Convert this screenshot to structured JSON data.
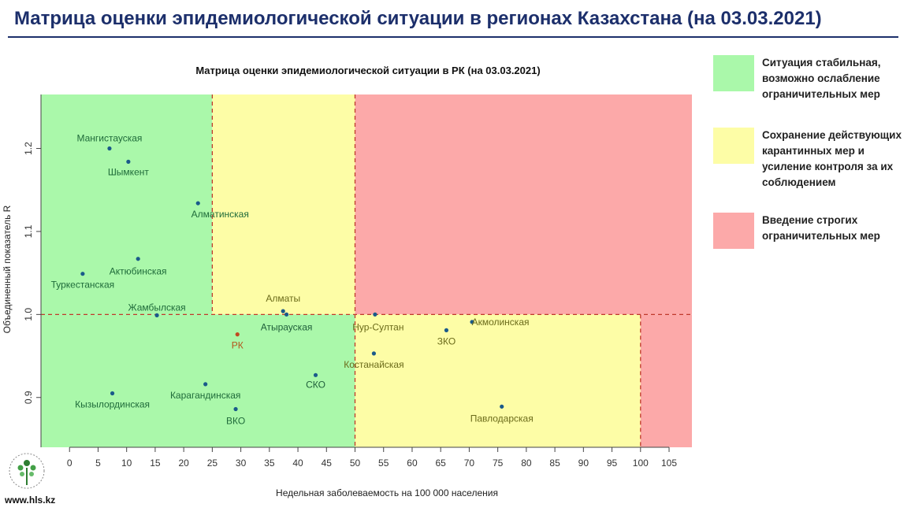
{
  "header": {
    "title": "Матрица оценки эпидемиологической ситуации в регионах Казахстана (на 03.03.2021)"
  },
  "legend": [
    {
      "color": "#aaf8aa",
      "text": "Ситуация стабильная,\nвозможно ослабление\nограничительных мер"
    },
    {
      "color": "#fdfda6",
      "text": "Сохранение действующих\nкарантинных мер и\nусиление контроля за их\nсоблюдением"
    },
    {
      "color": "#fca9a9",
      "text": "Введение строгих\nограничительных мер"
    }
  ],
  "footer": {
    "url": "www.hls.kz"
  },
  "chart_data": {
    "type": "scatter",
    "title": "Матрица оценки эпидемиологической ситуации в РК (на 03.03.2021)",
    "xlabel": "Недельная заболеваемость на 100 000 населения",
    "ylabel": "Объединенный показатель R",
    "xlim": [
      -5,
      109
    ],
    "ylim": [
      0.84,
      1.265
    ],
    "xticks": [
      0,
      5,
      10,
      15,
      20,
      25,
      30,
      35,
      40,
      45,
      50,
      55,
      60,
      65,
      70,
      75,
      80,
      85,
      90,
      95,
      100,
      105
    ],
    "yticks": [
      0.9,
      1.0,
      1.1,
      1.2
    ],
    "zone_colors": {
      "green": "#aaf8aa",
      "yellow": "#fdfda6",
      "red": "#fca9a9"
    },
    "thresholds": {
      "x": [
        25,
        50,
        100
      ],
      "y": 1.0
    },
    "points": [
      {
        "label": "Мангистауская",
        "x": 7.0,
        "y": 1.2,
        "color": "#1a5a8a",
        "label_color": "#1f6b3a"
      },
      {
        "label": "Шымкент",
        "x": 10.3,
        "y": 1.184,
        "color": "#1a5a8a",
        "label_color": "#1f6b3a"
      },
      {
        "label": "Алматинская",
        "x": 22.5,
        "y": 1.134,
        "color": "#1a5a8a",
        "label_color": "#1f6b3a"
      },
      {
        "label": "Актюбинская",
        "x": 12.0,
        "y": 1.067,
        "color": "#1a5a8a",
        "label_color": "#1f6b3a"
      },
      {
        "label": "Туркестанская",
        "x": 2.3,
        "y": 1.049,
        "color": "#1a5a8a",
        "label_color": "#1f6b3a"
      },
      {
        "label": "Жамбылская",
        "x": 15.3,
        "y": 0.999,
        "color": "#1a5a8a",
        "label_color": "#1f6b3a"
      },
      {
        "label": "Алматы",
        "x": 37.4,
        "y": 1.004,
        "color": "#1a5a8a",
        "label_color": "#6b6b1a"
      },
      {
        "label": "Атырауская",
        "x": 38.0,
        "y": 1.0,
        "color": "#1a5a8a",
        "label_color": "#1f5f3a"
      },
      {
        "label": "Нур-Султан",
        "x": 53.5,
        "y": 1.0,
        "color": "#1a5a8a",
        "label_color": "#6b6b1a"
      },
      {
        "label": "Акмолинская",
        "x": 70.5,
        "y": 0.991,
        "color": "#1a5a8a",
        "label_color": "#6b6b1a"
      },
      {
        "label": "ЗКО",
        "x": 66.0,
        "y": 0.981,
        "color": "#1a5a8a",
        "label_color": "#6b6b1a"
      },
      {
        "label": "РК",
        "x": 29.4,
        "y": 0.976,
        "color": "#c04a20",
        "label_color": "#b4541c"
      },
      {
        "label": "Костанайская",
        "x": 53.3,
        "y": 0.953,
        "color": "#1a5a8a",
        "label_color": "#6b6b1a"
      },
      {
        "label": "СКО",
        "x": 43.1,
        "y": 0.927,
        "color": "#1a5a8a",
        "label_color": "#1f5f3a"
      },
      {
        "label": "Карагандинская",
        "x": 23.8,
        "y": 0.916,
        "color": "#1a5a8a",
        "label_color": "#1f6b3a"
      },
      {
        "label": "Кызылординская",
        "x": 7.5,
        "y": 0.905,
        "color": "#1a5a8a",
        "label_color": "#1f6b3a"
      },
      {
        "label": "Павлодарская",
        "x": 75.7,
        "y": 0.889,
        "color": "#1a5a8a",
        "label_color": "#6b6b1a"
      },
      {
        "label": "ВКО",
        "x": 29.1,
        "y": 0.886,
        "color": "#1a5a8a",
        "label_color": "#1f6b3a"
      }
    ]
  }
}
